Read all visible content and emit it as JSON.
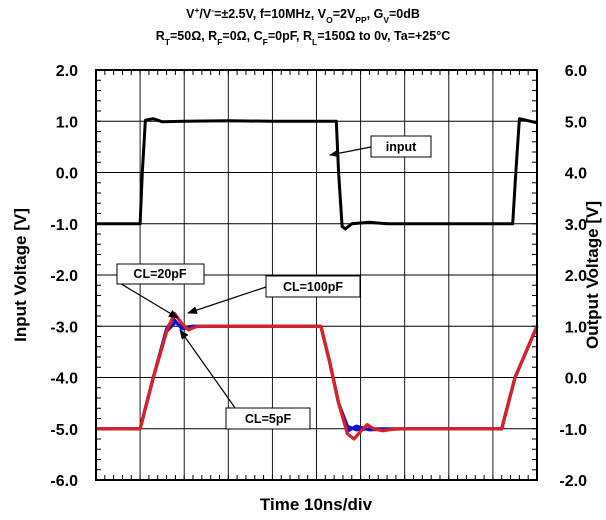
{
  "chart_data": {
    "type": "line",
    "title_line1": {
      "parts": [
        {
          "t": "V"
        },
        {
          "t": "+",
          "sup": true
        },
        {
          "t": "/V"
        },
        {
          "t": "-",
          "sup": true
        },
        {
          "t": "=±2.5V, f=10MHz, V"
        },
        {
          "t": "O",
          "sub": true
        },
        {
          "t": "=2V"
        },
        {
          "t": "PP",
          "sub": true
        },
        {
          "t": ", G"
        },
        {
          "t": "V",
          "sub": true
        },
        {
          "t": "=0dB"
        }
      ]
    },
    "title_line2": {
      "parts": [
        {
          "t": "R"
        },
        {
          "t": "T",
          "sub": true
        },
        {
          "t": "=50Ω, R"
        },
        {
          "t": "F",
          "sub": true
        },
        {
          "t": "=0Ω, C"
        },
        {
          "t": "F",
          "sub": true
        },
        {
          "t": "=0pF, R"
        },
        {
          "t": "L",
          "sub": true
        },
        {
          "t": "=150Ω to 0v, Ta=+25°C"
        }
      ]
    },
    "xlabel": "Time 10ns/div",
    "ylabel_left": "Input Voltage [V]",
    "ylabel_right": "Output Voltage [V]",
    "x_divisions": 10,
    "ylim_left": [
      -6,
      2
    ],
    "ylim_right": [
      -2,
      6
    ],
    "yticks_left": [
      "2.0",
      "1.0",
      "0.0",
      "-1.0",
      "-2.0",
      "-3.0",
      "-4.0",
      "-5.0",
      "-6.0"
    ],
    "yticks_right": [
      "6.0",
      "5.0",
      "4.0",
      "3.0",
      "2.0",
      "1.0",
      "0.0",
      "-1.0",
      "-2.0"
    ],
    "grid": true,
    "annotations": [
      {
        "id": "input",
        "label": "input"
      },
      {
        "id": "cl20",
        "label": "CL=20pF"
      },
      {
        "id": "cl100",
        "label": "CL=100pF"
      },
      {
        "id": "cl5",
        "label": "CL=5pF"
      }
    ],
    "series": [
      {
        "name": "input",
        "color": "#000000",
        "axis": "left",
        "points": [
          [
            0,
            -1
          ],
          [
            0.6,
            -1
          ],
          [
            1.0,
            -1
          ],
          [
            1.05,
            0.0
          ],
          [
            1.12,
            1.02
          ],
          [
            1.3,
            1.05
          ],
          [
            1.5,
            0.99
          ],
          [
            2.0,
            1.0
          ],
          [
            3.0,
            1.01
          ],
          [
            4.0,
            1.0
          ],
          [
            5.0,
            1.0
          ],
          [
            5.45,
            1.0
          ],
          [
            5.5,
            0.0
          ],
          [
            5.58,
            -1.05
          ],
          [
            5.65,
            -1.1
          ],
          [
            5.8,
            -1.0
          ],
          [
            6.2,
            -0.97
          ],
          [
            6.6,
            -1.0
          ],
          [
            7.0,
            -1.0
          ],
          [
            8.0,
            -1.0
          ],
          [
            9.0,
            -1.0
          ],
          [
            9.45,
            -1.0
          ],
          [
            9.52,
            0.0
          ],
          [
            9.6,
            1.05
          ],
          [
            9.7,
            1.03
          ],
          [
            10.0,
            0.97
          ]
        ]
      },
      {
        "name": "CL=5pF",
        "color": "#1010d0",
        "axis": "right",
        "points": [
          [
            0,
            -1
          ],
          [
            1.0,
            -1
          ],
          [
            1.3,
            0.0
          ],
          [
            1.6,
            0.9
          ],
          [
            1.8,
            1.08
          ],
          [
            1.95,
            0.98
          ],
          [
            2.2,
            1.0
          ],
          [
            3.0,
            1.0
          ],
          [
            5.1,
            1.0
          ],
          [
            5.3,
            0.3
          ],
          [
            5.5,
            -0.5
          ],
          [
            5.7,
            -0.95
          ],
          [
            5.9,
            -1.02
          ],
          [
            6.2,
            -1.0
          ],
          [
            7.0,
            -1.0
          ],
          [
            9.2,
            -1.0
          ],
          [
            9.5,
            0.0
          ],
          [
            9.75,
            0.5
          ],
          [
            10.0,
            1.0
          ]
        ]
      },
      {
        "name": "CL=20pF",
        "color": "#1010d0",
        "axis": "right",
        "points": [
          [
            0,
            -1
          ],
          [
            1.0,
            -1
          ],
          [
            1.3,
            0.0
          ],
          [
            1.6,
            0.95
          ],
          [
            1.75,
            1.15
          ],
          [
            1.95,
            0.95
          ],
          [
            2.2,
            1.0
          ],
          [
            3.0,
            1.0
          ],
          [
            5.1,
            1.0
          ],
          [
            5.3,
            0.3
          ],
          [
            5.5,
            -0.5
          ],
          [
            5.7,
            -1.05
          ],
          [
            5.9,
            -0.95
          ],
          [
            6.2,
            -1.02
          ],
          [
            7.0,
            -1.0
          ],
          [
            9.2,
            -1.0
          ],
          [
            9.5,
            0.0
          ],
          [
            9.75,
            0.5
          ],
          [
            10.0,
            1.0
          ]
        ]
      },
      {
        "name": "CL=100pF",
        "color": "#e02020",
        "axis": "right",
        "points": [
          [
            0,
            -1
          ],
          [
            1.0,
            -1
          ],
          [
            1.3,
            0.0
          ],
          [
            1.6,
            0.9
          ],
          [
            1.78,
            1.25
          ],
          [
            1.95,
            1.05
          ],
          [
            2.1,
            0.93
          ],
          [
            2.3,
            1.0
          ],
          [
            2.6,
            1.0
          ],
          [
            3.0,
            1.0
          ],
          [
            5.1,
            1.0
          ],
          [
            5.3,
            0.3
          ],
          [
            5.5,
            -0.5
          ],
          [
            5.7,
            -1.1
          ],
          [
            5.85,
            -1.2
          ],
          [
            6.0,
            -1.05
          ],
          [
            6.15,
            -0.92
          ],
          [
            6.3,
            -1.0
          ],
          [
            6.5,
            -1.04
          ],
          [
            6.8,
            -1.0
          ],
          [
            7.0,
            -1.0
          ],
          [
            9.2,
            -1.0
          ],
          [
            9.5,
            0.0
          ],
          [
            9.75,
            0.5
          ],
          [
            10.0,
            1.0
          ]
        ]
      }
    ]
  }
}
